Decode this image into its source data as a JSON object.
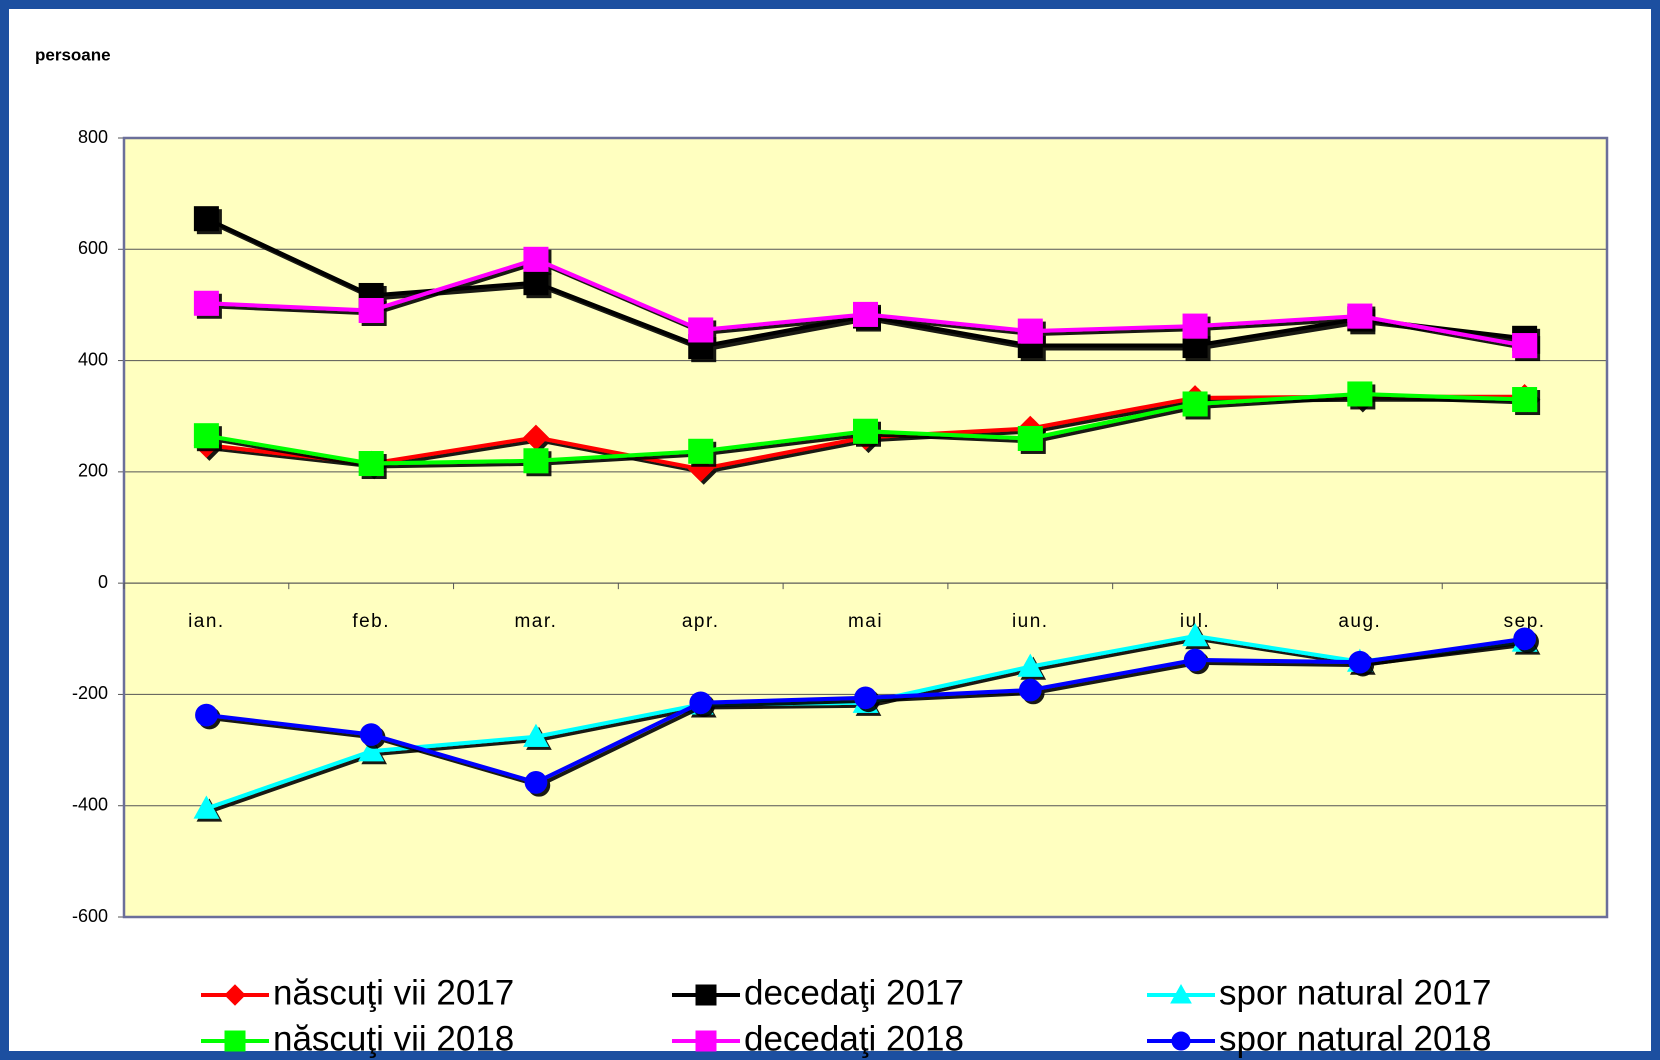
{
  "chart_data": {
    "type": "line",
    "y_label": "persoane",
    "categories": [
      "ian.",
      "feb.",
      "mar.",
      "apr.",
      "mai",
      "iun.",
      "iul.",
      "aug.",
      "sep."
    ],
    "series": [
      {
        "name": "născuţi vii 2017",
        "color": "#ff0000",
        "marker": "diamond",
        "values": [
          248,
          215,
          262,
          205,
          262,
          278,
          333,
          335,
          335
        ]
      },
      {
        "name": "decedaţi 2017",
        "color": "#000000",
        "marker": "square",
        "values": [
          655,
          517,
          540,
          425,
          480,
          427,
          427,
          475,
          440
        ]
      },
      {
        "name": "spor natural 2017",
        "color": "#00ffff",
        "marker": "triangle",
        "values": [
          -405,
          -302,
          -276,
          -218,
          -215,
          -150,
          -95,
          -141,
          -105
        ]
      },
      {
        "name": "născuţi vii 2018",
        "color": "#00ff00",
        "marker": "square",
        "values": [
          265,
          215,
          220,
          237,
          273,
          260,
          322,
          340,
          330
        ]
      },
      {
        "name": "decedaţi 2018",
        "color": "#ff00ff",
        "marker": "square",
        "values": [
          503,
          490,
          582,
          455,
          483,
          453,
          462,
          480,
          427
        ]
      },
      {
        "name": "spor natural 2018",
        "color": "#0000ff",
        "marker": "circle",
        "values": [
          -237,
          -272,
          -358,
          -215,
          -206,
          -192,
          -138,
          -142,
          -100
        ]
      }
    ],
    "ylim": [
      -600,
      800
    ],
    "yticks": [
      -600,
      -400,
      -200,
      0,
      200,
      400,
      600,
      800
    ],
    "grid": true,
    "plot_background": "#ffffc0",
    "legend": "bottom"
  }
}
